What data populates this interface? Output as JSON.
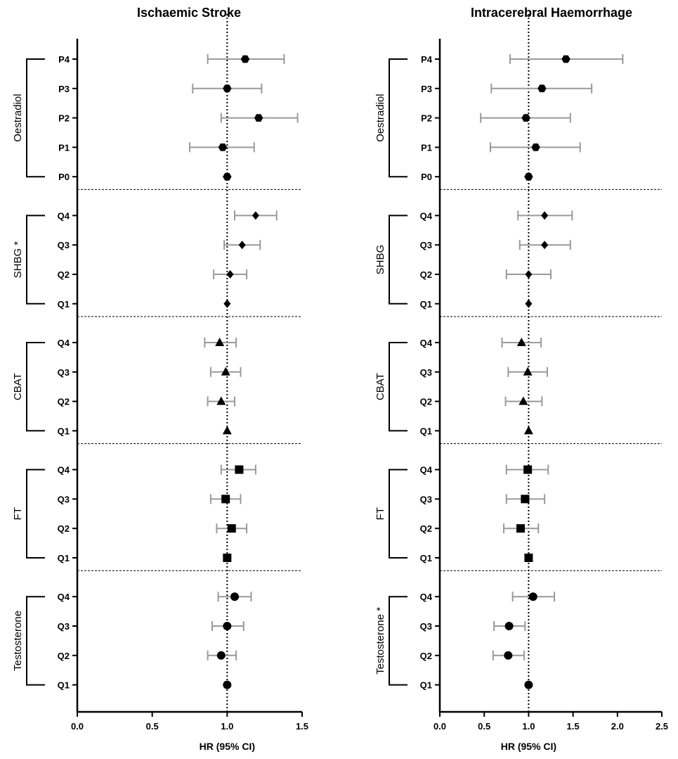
{
  "chart_data": [
    {
      "type": "forest",
      "title": "Ischaemic Stroke",
      "xlabel": "HR (95% CI)",
      "xlim": [
        0.0,
        1.5
      ],
      "xticks": [
        "0.0",
        "0.5",
        "1.0",
        "1.5"
      ],
      "xtick_values": [
        0.0,
        0.5,
        1.0,
        1.5
      ],
      "reference_line": 1.0,
      "groups": [
        {
          "label": "Oestradiol",
          "marker": "hexagon",
          "rows": [
            {
              "category": "P4",
              "hr": 1.12,
              "lo": 0.87,
              "hi": 1.38
            },
            {
              "category": "P3",
              "hr": 1.0,
              "lo": 0.77,
              "hi": 1.23
            },
            {
              "category": "P2",
              "hr": 1.21,
              "lo": 0.96,
              "hi": 1.47
            },
            {
              "category": "P1",
              "hr": 0.97,
              "lo": 0.75,
              "hi": 1.18
            },
            {
              "category": "P0",
              "hr": 1.0,
              "lo": 1.0,
              "hi": 1.0
            }
          ]
        },
        {
          "label": "SHBG *",
          "marker": "diamond",
          "rows": [
            {
              "category": "Q4",
              "hr": 1.19,
              "lo": 1.05,
              "hi": 1.33
            },
            {
              "category": "Q3",
              "hr": 1.1,
              "lo": 0.98,
              "hi": 1.22
            },
            {
              "category": "Q2",
              "hr": 1.02,
              "lo": 0.91,
              "hi": 1.13
            },
            {
              "category": "Q1",
              "hr": 1.0,
              "lo": 1.0,
              "hi": 1.0
            }
          ]
        },
        {
          "label": "CBAT",
          "marker": "triangle",
          "rows": [
            {
              "category": "Q4",
              "hr": 0.95,
              "lo": 0.85,
              "hi": 1.06
            },
            {
              "category": "Q3",
              "hr": 0.99,
              "lo": 0.89,
              "hi": 1.09
            },
            {
              "category": "Q2",
              "hr": 0.96,
              "lo": 0.87,
              "hi": 1.05
            },
            {
              "category": "Q1",
              "hr": 1.0,
              "lo": 1.0,
              "hi": 1.0
            }
          ]
        },
        {
          "label": "FT",
          "marker": "square",
          "rows": [
            {
              "category": "Q4",
              "hr": 1.08,
              "lo": 0.96,
              "hi": 1.19
            },
            {
              "category": "Q3",
              "hr": 0.99,
              "lo": 0.89,
              "hi": 1.09
            },
            {
              "category": "Q2",
              "hr": 1.03,
              "lo": 0.93,
              "hi": 1.13
            },
            {
              "category": "Q1",
              "hr": 1.0,
              "lo": 1.0,
              "hi": 1.0
            }
          ]
        },
        {
          "label": "Testosterone",
          "marker": "circle",
          "rows": [
            {
              "category": "Q4",
              "hr": 1.05,
              "lo": 0.94,
              "hi": 1.16
            },
            {
              "category": "Q3",
              "hr": 1.0,
              "lo": 0.9,
              "hi": 1.11
            },
            {
              "category": "Q2",
              "hr": 0.96,
              "lo": 0.87,
              "hi": 1.06
            },
            {
              "category": "Q1",
              "hr": 1.0,
              "lo": 1.0,
              "hi": 1.0
            }
          ]
        }
      ]
    },
    {
      "type": "forest",
      "title": "Intracerebral Haemorrhage",
      "xlabel": "HR (95% CI)",
      "xlim": [
        0.0,
        2.5
      ],
      "xticks": [
        "0.0",
        "0.5",
        "1.0",
        "1.5",
        "2.0",
        "2.5"
      ],
      "xtick_values": [
        0.0,
        0.5,
        1.0,
        1.5,
        2.0,
        2.5
      ],
      "reference_line": 1.0,
      "groups": [
        {
          "label": "Oestradiol",
          "marker": "hexagon",
          "rows": [
            {
              "category": "P4",
              "hr": 1.42,
              "lo": 0.79,
              "hi": 2.06
            },
            {
              "category": "P3",
              "hr": 1.15,
              "lo": 0.58,
              "hi": 1.71
            },
            {
              "category": "P2",
              "hr": 0.97,
              "lo": 0.46,
              "hi": 1.47
            },
            {
              "category": "P1",
              "hr": 1.08,
              "lo": 0.57,
              "hi": 1.58
            },
            {
              "category": "P0",
              "hr": 1.0,
              "lo": 1.0,
              "hi": 1.0
            }
          ]
        },
        {
          "label": "SHBG",
          "marker": "diamond",
          "rows": [
            {
              "category": "Q4",
              "hr": 1.18,
              "lo": 0.88,
              "hi": 1.49
            },
            {
              "category": "Q3",
              "hr": 1.18,
              "lo": 0.9,
              "hi": 1.47
            },
            {
              "category": "Q2",
              "hr": 1.0,
              "lo": 0.75,
              "hi": 1.25
            },
            {
              "category": "Q1",
              "hr": 1.0,
              "lo": 1.0,
              "hi": 1.0
            }
          ]
        },
        {
          "label": "CBAT",
          "marker": "triangle",
          "rows": [
            {
              "category": "Q4",
              "hr": 0.92,
              "lo": 0.7,
              "hi": 1.14
            },
            {
              "category": "Q3",
              "hr": 0.99,
              "lo": 0.77,
              "hi": 1.21
            },
            {
              "category": "Q2",
              "hr": 0.94,
              "lo": 0.74,
              "hi": 1.15
            },
            {
              "category": "Q1",
              "hr": 1.0,
              "lo": 1.0,
              "hi": 1.0
            }
          ]
        },
        {
          "label": "FT",
          "marker": "square",
          "rows": [
            {
              "category": "Q4",
              "hr": 0.99,
              "lo": 0.75,
              "hi": 1.22
            },
            {
              "category": "Q3",
              "hr": 0.96,
              "lo": 0.75,
              "hi": 1.18
            },
            {
              "category": "Q2",
              "hr": 0.91,
              "lo": 0.72,
              "hi": 1.11
            },
            {
              "category": "Q1",
              "hr": 1.0,
              "lo": 1.0,
              "hi": 1.0
            }
          ]
        },
        {
          "label": "Testosterone *",
          "marker": "circle",
          "rows": [
            {
              "category": "Q4",
              "hr": 1.05,
              "lo": 0.82,
              "hi": 1.29
            },
            {
              "category": "Q3",
              "hr": 0.78,
              "lo": 0.61,
              "hi": 0.96
            },
            {
              "category": "Q2",
              "hr": 0.77,
              "lo": 0.6,
              "hi": 0.95
            },
            {
              "category": "Q1",
              "hr": 1.0,
              "lo": 1.0,
              "hi": 1.0
            }
          ]
        }
      ]
    }
  ]
}
